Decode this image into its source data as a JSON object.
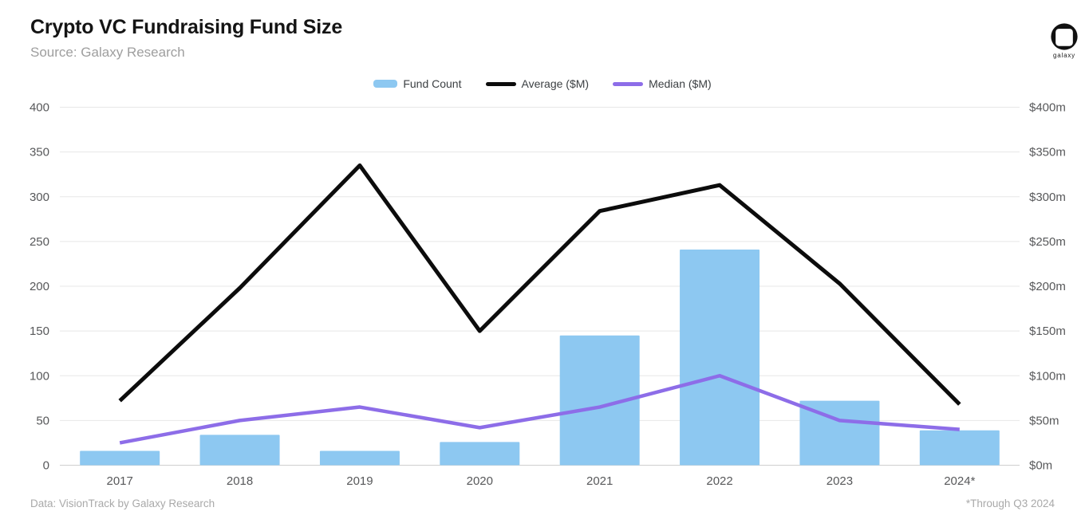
{
  "header": {
    "title": "Crypto VC Fundraising Fund Size",
    "subtitle": "Source: Galaxy Research",
    "logo_text": "galaxy"
  },
  "legend": {
    "items": [
      {
        "label": "Fund Count",
        "type": "bar",
        "color": "#8dc8f1"
      },
      {
        "label": "Average ($M)",
        "type": "line",
        "color": "#0c0c0c"
      },
      {
        "label": "Median ($M)",
        "type": "line",
        "color": "#8d6de8"
      }
    ]
  },
  "footer": {
    "left": "Data: VisionTrack by Galaxy Research",
    "right": "*Through Q3 2024"
  },
  "chart_data": {
    "type": "bar",
    "subtype": "bar+line combo, dual axis",
    "categories": [
      "2017",
      "2018",
      "2019",
      "2020",
      "2021",
      "2022",
      "2023",
      "2024*"
    ],
    "series": [
      {
        "name": "Fund Count",
        "type": "bar",
        "axis": "left",
        "color": "#8dc8f1",
        "values": [
          16,
          34,
          16,
          26,
          145,
          241,
          72,
          39
        ]
      },
      {
        "name": "Average ($M)",
        "type": "line",
        "axis": "right",
        "color": "#0c0c0c",
        "values": [
          72,
          198,
          335,
          150,
          284,
          313,
          203,
          68
        ]
      },
      {
        "name": "Median ($M)",
        "type": "line",
        "axis": "right",
        "color": "#8d6de8",
        "values": [
          25,
          50,
          65,
          42,
          65,
          100,
          50,
          40
        ]
      }
    ],
    "title": "Crypto VC Fundraising Fund Size",
    "xlabel": "",
    "ylabel_left": "",
    "ylabel_right": "",
    "left_axis": {
      "range": [
        0,
        400
      ],
      "ticks": [
        400,
        350,
        300,
        250,
        200,
        150,
        100,
        50,
        0
      ]
    },
    "right_axis": {
      "range": [
        0,
        400
      ],
      "tick_labels": [
        "$400m",
        "$350m",
        "$300m",
        "$250m",
        "$200m",
        "$150m",
        "$100m",
        "$50m",
        "$0m"
      ]
    },
    "grid": true,
    "legend_position": "top"
  }
}
